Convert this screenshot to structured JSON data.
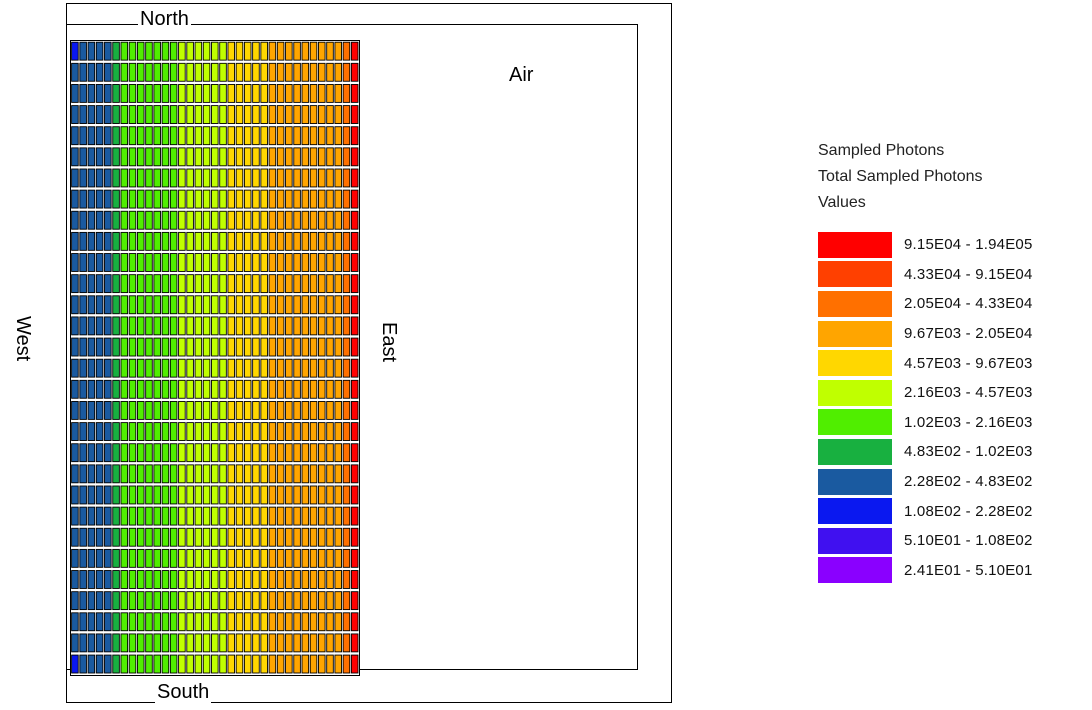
{
  "labels": {
    "north": "North",
    "south": "South",
    "east": "East",
    "west": "West",
    "air": "Air"
  },
  "legend": {
    "title_lines": [
      "Sampled Photons",
      "Total Sampled Photons",
      "Values"
    ],
    "entries": [
      {
        "label": "9.15E04 - 1.94E05",
        "color": "#ff0000"
      },
      {
        "label": "4.33E04 - 9.15E04",
        "color": "#ff4000"
      },
      {
        "label": "2.05E04 - 4.33E04",
        "color": "#ff7000"
      },
      {
        "label": "9.67E03 - 2.05E04",
        "color": "#ffa500"
      },
      {
        "label": "4.57E03 - 9.67E03",
        "color": "#ffd700"
      },
      {
        "label": "2.16E03 - 4.57E03",
        "color": "#c0ff00"
      },
      {
        "label": "1.02E03 - 2.16E03",
        "color": "#50ee00"
      },
      {
        "label": "4.83E02 - 1.02E03",
        "color": "#18b040"
      },
      {
        "label": "2.28E02 - 4.83E02",
        "color": "#1a5aa0"
      },
      {
        "label": "1.08E02 - 2.28E02",
        "color": "#0a18f0"
      },
      {
        "label": "5.10E01 - 1.08E02",
        "color": "#4010f0"
      },
      {
        "label": "2.41E01 - 5.10E01",
        "color": "#8a00ff"
      }
    ]
  },
  "grid": {
    "rows": 30,
    "columns": 35,
    "row_pattern": [
      8,
      8,
      8,
      8,
      8,
      7,
      6,
      6,
      6,
      6,
      6,
      6,
      6,
      5,
      5,
      5,
      5,
      5,
      5,
      4,
      4,
      4,
      4,
      4,
      3,
      3,
      3,
      3,
      3,
      3,
      3,
      3,
      3,
      2,
      0
    ],
    "corner_rows": [
      0,
      29
    ],
    "corner_color_index": 9
  }
}
